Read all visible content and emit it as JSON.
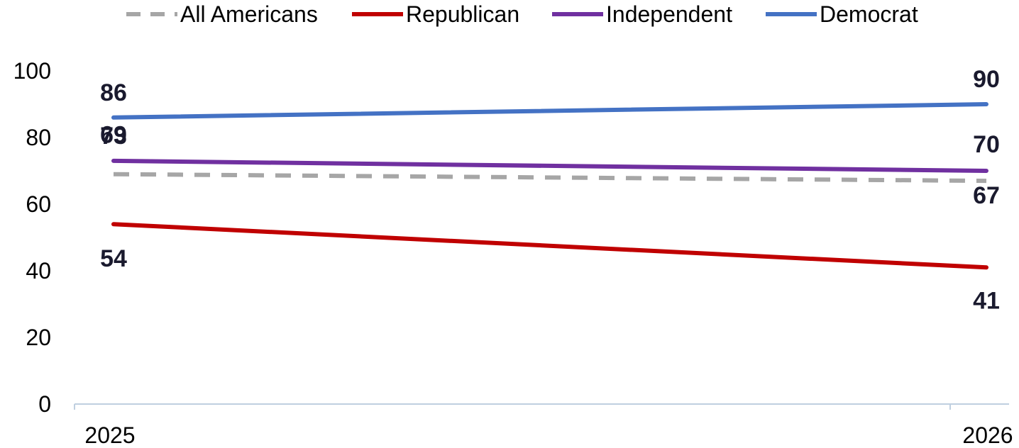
{
  "chart_data": {
    "type": "line",
    "x": [
      "2025",
      "2026"
    ],
    "ylim": [
      0,
      100
    ],
    "yticks": [
      0,
      20,
      40,
      60,
      80,
      100
    ],
    "grid": false,
    "legend_position": "top",
    "series": [
      {
        "name": "All Americans",
        "values": [
          69,
          67
        ],
        "color": "#a6a6a6",
        "dashed": true
      },
      {
        "name": "Republican",
        "values": [
          54,
          41
        ],
        "color": "#c00000",
        "dashed": false
      },
      {
        "name": "Independent",
        "values": [
          73,
          70
        ],
        "color": "#7030a0",
        "dashed": false
      },
      {
        "name": "Democrat",
        "values": [
          86,
          90
        ],
        "color": "#4472c4",
        "dashed": false
      }
    ]
  }
}
